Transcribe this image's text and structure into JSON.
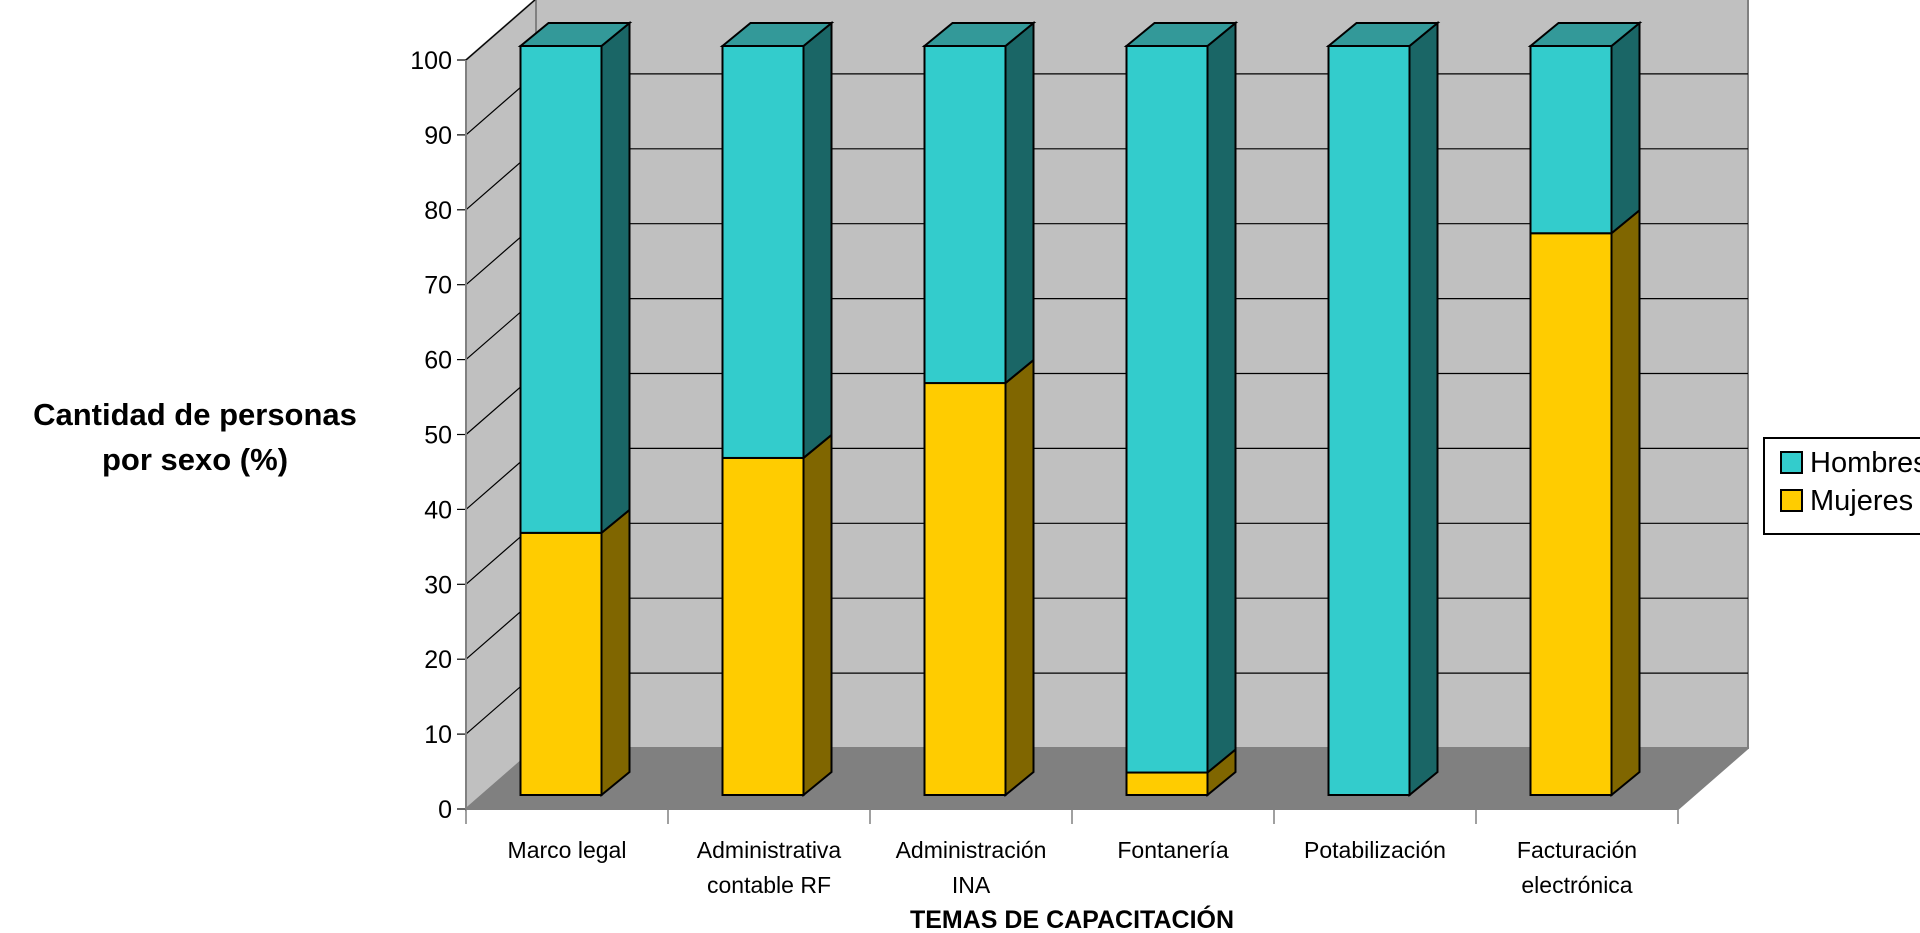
{
  "chart_data": {
    "type": "bar",
    "stacked": true,
    "three_d": true,
    "title": "",
    "xlabel": "TEMAS DE CAPACITACIÓN",
    "ylabel_lines": [
      "Cantidad de personas",
      "por sexo (%)"
    ],
    "categories": [
      [
        "Marco legal"
      ],
      [
        "Administrativa",
        "contable RF"
      ],
      [
        "Administración",
        "INA"
      ],
      [
        "Fontanería"
      ],
      [
        "Potabilización"
      ],
      [
        "Facturación",
        "electrónica"
      ]
    ],
    "series": [
      {
        "name": "Mujeres",
        "values": [
          35,
          45,
          55,
          3,
          0,
          75
        ],
        "color": "#ffcc00",
        "side_color": "#806600"
      },
      {
        "name": "Hombres",
        "values": [
          65,
          55,
          45,
          97,
          100,
          25
        ],
        "color": "#33cccc",
        "side_color": "#1a6666"
      }
    ],
    "ylim": [
      0,
      100
    ],
    "yticks": [
      0,
      10,
      20,
      30,
      40,
      50,
      60,
      70,
      80,
      90,
      100
    ],
    "grid": true,
    "legend_position": "right",
    "legend": [
      {
        "label": "Hombres",
        "color": "#33cccc"
      },
      {
        "label": "Mujeres",
        "color": "#ffcc00"
      }
    ],
    "wall_color": "#c0c0c0",
    "floor_color": "#808080"
  }
}
